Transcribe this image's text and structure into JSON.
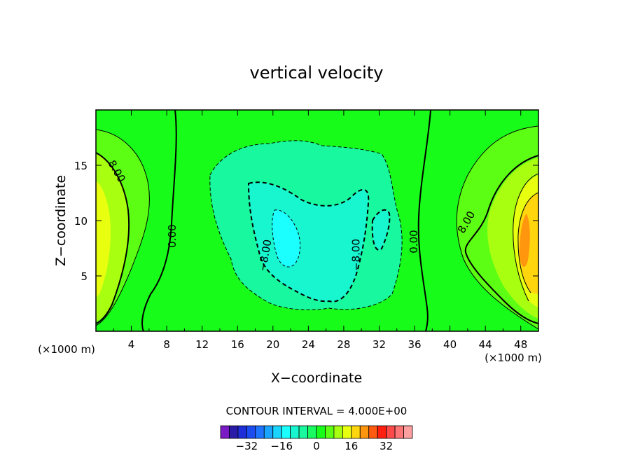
{
  "chart_data": {
    "type": "heatmap",
    "title": "vertical velocity",
    "xlabel": "X−coordinate",
    "ylabel": "Z−coordinate",
    "x_unit_left": "(×1000 m)",
    "x_unit_right": "(×1000 m)",
    "xlim": [
      0,
      50
    ],
    "ylim": [
      0,
      20
    ],
    "x_ticks": [
      4,
      8,
      12,
      16,
      20,
      24,
      28,
      32,
      36,
      40,
      44,
      48
    ],
    "x_tick_labels": [
      "4",
      "8",
      "12",
      "16",
      "20",
      "24",
      "28",
      "32",
      "36",
      "40",
      "44",
      "48"
    ],
    "y_ticks": [
      5,
      10,
      15
    ],
    "y_tick_labels": [
      "5",
      "10",
      "15"
    ],
    "contour_interval_text": "CONTOUR INTERVAL = 4.000E+00",
    "contour_labels": [
      {
        "text": "8.00",
        "x": 2,
        "z": 14.3,
        "angle": 60
      },
      {
        "text": "0.00",
        "x": 9,
        "z": 8.6,
        "angle": -90
      },
      {
        "text": "−8.00",
        "x": 19.5,
        "z": 6.8,
        "angle": -80
      },
      {
        "text": "−8.00",
        "x": 29.8,
        "z": 6.9,
        "angle": -90
      },
      {
        "text": "0.00",
        "x": 36.3,
        "z": 8.1,
        "angle": -90
      },
      {
        "text": "8.00",
        "x": 42.2,
        "z": 9.7,
        "angle": -60
      }
    ],
    "colorbar": {
      "colors": [
        "#7a1ac4",
        "#2a1aa8",
        "#1e2ed8",
        "#1c4cf0",
        "#1e74ff",
        "#1aa6ff",
        "#18d4ff",
        "#1cffff",
        "#18f6d0",
        "#18f89e",
        "#18fa60",
        "#18fc1a",
        "#5cff14",
        "#a8ff10",
        "#e8ff10",
        "#ffd60e",
        "#ff960e",
        "#ff5a10",
        "#ff1e10",
        "#ff4a4a",
        "#ff7676",
        "#ffa0a0"
      ],
      "tick_values": [
        -32,
        -16,
        0,
        16,
        32
      ],
      "tick_labels": [
        "−32",
        "−16",
        "0",
        "16",
        "32"
      ],
      "range": [
        -44,
        44
      ]
    },
    "features": [
      {
        "kind": "updraft",
        "x": 0.8,
        "z": 9.5,
        "peak": 12
      },
      {
        "kind": "updraft",
        "x": 48.5,
        "z": 8.5,
        "peak": 32
      },
      {
        "kind": "downdraft",
        "x": 21.5,
        "z": 8.5,
        "peak": -20
      },
      {
        "kind": "downdraft",
        "x": 27.5,
        "z": 4.5,
        "peak": -16
      }
    ],
    "grid": false,
    "legend": "bottom"
  }
}
